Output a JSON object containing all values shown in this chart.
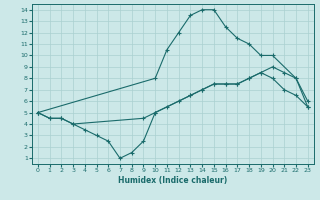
{
  "xlabel": "Humidex (Indice chaleur)",
  "bg_color": "#cce8e8",
  "line_color": "#1a6b6b",
  "grid_color": "#aad0d0",
  "xlim": [
    -0.5,
    23.5
  ],
  "ylim": [
    0.5,
    14.5
  ],
  "xticks": [
    0,
    1,
    2,
    3,
    4,
    5,
    6,
    7,
    8,
    9,
    10,
    11,
    12,
    13,
    14,
    15,
    16,
    17,
    18,
    19,
    20,
    21,
    22,
    23
  ],
  "yticks": [
    1,
    2,
    3,
    4,
    5,
    6,
    7,
    8,
    9,
    10,
    11,
    12,
    13,
    14
  ],
  "line1_x": [
    0,
    1,
    2,
    3,
    4,
    5,
    6,
    7,
    8,
    9,
    10,
    11,
    12,
    13,
    14,
    15,
    16,
    17,
    18,
    19,
    20,
    21,
    22,
    23
  ],
  "line1_y": [
    5,
    4.5,
    4.5,
    4,
    3.5,
    3,
    2.5,
    1,
    1.5,
    2.5,
    5,
    5.5,
    6,
    6.5,
    7,
    7.5,
    7.5,
    7.5,
    8,
    8.5,
    8,
    7,
    6.5,
    5.5
  ],
  "line2_x": [
    0,
    1,
    2,
    3,
    9,
    10,
    13,
    14,
    15,
    16,
    17,
    18,
    19,
    20,
    21,
    22,
    23
  ],
  "line2_y": [
    5,
    4.5,
    4.5,
    4,
    4.5,
    5,
    6.5,
    7,
    7.5,
    7.5,
    7.5,
    8,
    8.5,
    9,
    8.5,
    8,
    6
  ],
  "line3_x": [
    0,
    10,
    11,
    12,
    13,
    14,
    15,
    16,
    17,
    18,
    19,
    20,
    22,
    23
  ],
  "line3_y": [
    5,
    8,
    10.5,
    12,
    13.5,
    14,
    14,
    12.5,
    11.5,
    11,
    10,
    10,
    8,
    5.5
  ]
}
